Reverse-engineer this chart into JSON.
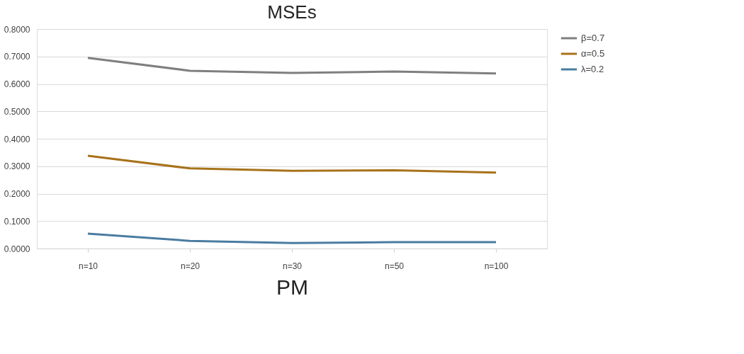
{
  "chart_data": {
    "type": "line",
    "title": "MSEs",
    "xlabel": "PM",
    "categories": [
      "n=10",
      "n=20",
      "n=30",
      "n=50",
      "n=100"
    ],
    "series": [
      {
        "name": "β=0.7",
        "color": "#7f7f7f",
        "values": [
          0.695,
          0.648,
          0.64,
          0.645,
          0.638
        ]
      },
      {
        "name": "α=0.5",
        "color": "#a8721a",
        "values": [
          0.338,
          0.292,
          0.283,
          0.285,
          0.277
        ]
      },
      {
        "name": "λ=0.2",
        "color": "#4a7ca0",
        "values": [
          0.054,
          0.028,
          0.02,
          0.023,
          0.023
        ]
      }
    ],
    "ylim": [
      0,
      0.8
    ],
    "yticks": [
      {
        "value": 0,
        "label": "0.0000"
      },
      {
        "value": 0.1,
        "label": "0.1000"
      },
      {
        "value": 0.2,
        "label": "0.2000"
      },
      {
        "value": 0.3,
        "label": "0.3000"
      },
      {
        "value": 0.4,
        "label": "0.4000"
      },
      {
        "value": 0.5,
        "label": "0.5000"
      },
      {
        "value": 0.6,
        "label": "0.6000"
      },
      {
        "value": 0.7,
        "label": "0.7000"
      },
      {
        "value": 0.8,
        "label": "0.8000"
      }
    ],
    "grid": "y",
    "legend": "right",
    "marker": "none",
    "line_style": "solid"
  }
}
